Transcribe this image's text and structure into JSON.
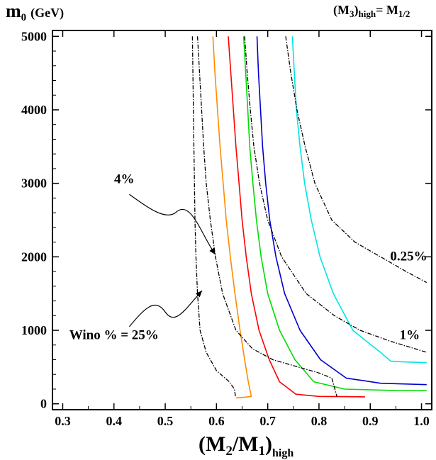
{
  "chart_data": {
    "type": "line",
    "title": "",
    "corner_label": {
      "base": "(M",
      "sub1": "3",
      "mid": ")",
      "sub2": "high",
      "rhs": "= M",
      "sub3": "1/2"
    },
    "xlabel": {
      "base": "(M",
      "sub1": "2",
      "mid": "/M",
      "sub2": "1",
      "close": ")",
      "sub3": "high"
    },
    "ylabel": {
      "base": "m",
      "sub": "0",
      "unit": "(GeV)"
    },
    "xlim": [
      0.28,
      1.02
    ],
    "ylim": [
      -80,
      5080
    ],
    "xticks": [
      "0.3",
      "0.4",
      "0.5",
      "0.6",
      "0.7",
      "0.8",
      "0.9",
      "1.0"
    ],
    "xtick_values": [
      0.3,
      0.4,
      0.5,
      0.6,
      0.7,
      0.8,
      0.9,
      1.0
    ],
    "yticks": [
      "0",
      "1000",
      "2000",
      "3000",
      "4000",
      "5000"
    ],
    "ytick_values": [
      0,
      1000,
      2000,
      3000,
      4000,
      5000
    ],
    "grid": false,
    "series": [
      {
        "color": "#ff8c00",
        "style": "solid",
        "points": [
          [
            0.593,
            5000
          ],
          [
            0.597,
            4500
          ],
          [
            0.602,
            4000
          ],
          [
            0.607,
            3500
          ],
          [
            0.613,
            3000
          ],
          [
            0.619,
            2500
          ],
          [
            0.627,
            2000
          ],
          [
            0.636,
            1500
          ],
          [
            0.646,
            1000
          ],
          [
            0.655,
            600
          ],
          [
            0.662,
            300
          ],
          [
            0.668,
            100
          ],
          [
            0.655,
            90
          ],
          [
            0.638,
            80
          ]
        ]
      },
      {
        "color": "#ff0000",
        "style": "solid",
        "points": [
          [
            0.623,
            5000
          ],
          [
            0.628,
            4500
          ],
          [
            0.633,
            4000
          ],
          [
            0.638,
            3500
          ],
          [
            0.644,
            3000
          ],
          [
            0.65,
            2500
          ],
          [
            0.658,
            2000
          ],
          [
            0.668,
            1500
          ],
          [
            0.683,
            1000
          ],
          [
            0.703,
            600
          ],
          [
            0.723,
            300
          ],
          [
            0.755,
            130
          ],
          [
            0.8,
            100
          ],
          [
            0.89,
            95
          ]
        ]
      },
      {
        "color": "#00dd00",
        "style": "solid",
        "points": [
          [
            0.653,
            5000
          ],
          [
            0.657,
            4500
          ],
          [
            0.661,
            4000
          ],
          [
            0.665,
            3500
          ],
          [
            0.671,
            3000
          ],
          [
            0.678,
            2500
          ],
          [
            0.687,
            2000
          ],
          [
            0.7,
            1500
          ],
          [
            0.723,
            1000
          ],
          [
            0.753,
            600
          ],
          [
            0.79,
            300
          ],
          [
            0.85,
            200
          ],
          [
            0.95,
            180
          ],
          [
            1.01,
            180
          ]
        ]
      },
      {
        "color": "#0000cc",
        "style": "solid",
        "points": [
          [
            0.679,
            5000
          ],
          [
            0.682,
            4500
          ],
          [
            0.686,
            4000
          ],
          [
            0.69,
            3500
          ],
          [
            0.696,
            3000
          ],
          [
            0.704,
            2500
          ],
          [
            0.716,
            2000
          ],
          [
            0.733,
            1500
          ],
          [
            0.763,
            1000
          ],
          [
            0.803,
            600
          ],
          [
            0.853,
            350
          ],
          [
            0.92,
            280
          ],
          [
            1.01,
            260
          ]
        ]
      },
      {
        "color": "#00e5e5",
        "style": "solid",
        "points": [
          [
            0.748,
            5000
          ],
          [
            0.752,
            4500
          ],
          [
            0.756,
            4000
          ],
          [
            0.763,
            3500
          ],
          [
            0.772,
            3000
          ],
          [
            0.785,
            2500
          ],
          [
            0.802,
            2000
          ],
          [
            0.828,
            1500
          ],
          [
            0.866,
            1000
          ],
          [
            0.92,
            700
          ],
          [
            0.94,
            580
          ],
          [
            0.965,
            570
          ],
          [
            1.01,
            560
          ]
        ]
      },
      {
        "color": "#000000",
        "style": "dashdot",
        "label": "Wino % = 25%",
        "points": [
          [
            0.553,
            5000
          ],
          [
            0.554,
            4500
          ],
          [
            0.555,
            4000
          ],
          [
            0.556,
            3500
          ],
          [
            0.557,
            3000
          ],
          [
            0.558,
            2500
          ],
          [
            0.56,
            2000
          ],
          [
            0.563,
            1500
          ],
          [
            0.568,
            1000
          ],
          [
            0.58,
            700
          ],
          [
            0.6,
            450
          ],
          [
            0.625,
            300
          ],
          [
            0.635,
            200
          ],
          [
            0.637,
            100
          ]
        ]
      },
      {
        "color": "#000000",
        "style": "dashdot",
        "label": "4%",
        "points": [
          [
            0.563,
            5000
          ],
          [
            0.567,
            4500
          ],
          [
            0.571,
            4000
          ],
          [
            0.575,
            3500
          ],
          [
            0.58,
            3000
          ],
          [
            0.588,
            2500
          ],
          [
            0.598,
            2000
          ],
          [
            0.612,
            1500
          ],
          [
            0.638,
            1000
          ],
          [
            0.67,
            750
          ],
          [
            0.71,
            600
          ],
          [
            0.76,
            500
          ],
          [
            0.8,
            420
          ],
          [
            0.825,
            350
          ],
          [
            0.835,
            100
          ]
        ]
      },
      {
        "color": "#000000",
        "style": "dashdot",
        "label": "1%",
        "points": [
          [
            0.655,
            5000
          ],
          [
            0.66,
            4500
          ],
          [
            0.666,
            4000
          ],
          [
            0.673,
            3500
          ],
          [
            0.684,
            3000
          ],
          [
            0.7,
            2500
          ],
          [
            0.727,
            2000
          ],
          [
            0.775,
            1500
          ],
          [
            0.83,
            1200
          ],
          [
            0.88,
            1000
          ],
          [
            0.94,
            850
          ],
          [
            1.01,
            700
          ]
        ]
      },
      {
        "color": "#000000",
        "style": "dashdot",
        "label": "0.25%",
        "points": [
          [
            0.735,
            5000
          ],
          [
            0.745,
            4500
          ],
          [
            0.757,
            4000
          ],
          [
            0.773,
            3500
          ],
          [
            0.792,
            3000
          ],
          [
            0.825,
            2500
          ],
          [
            0.87,
            2200
          ],
          [
            0.92,
            2000
          ],
          [
            0.97,
            1800
          ],
          [
            1.01,
            1650
          ]
        ]
      }
    ],
    "annotations": [
      {
        "text": "4%",
        "at": [
          0.42,
          3000
        ]
      },
      {
        "text": "0.25%",
        "at": [
          0.975,
          1950
        ]
      },
      {
        "text": "1%",
        "at": [
          0.977,
          880
        ]
      },
      {
        "text": "Wino % = 25%",
        "at": [
          0.4,
          880
        ]
      }
    ]
  }
}
